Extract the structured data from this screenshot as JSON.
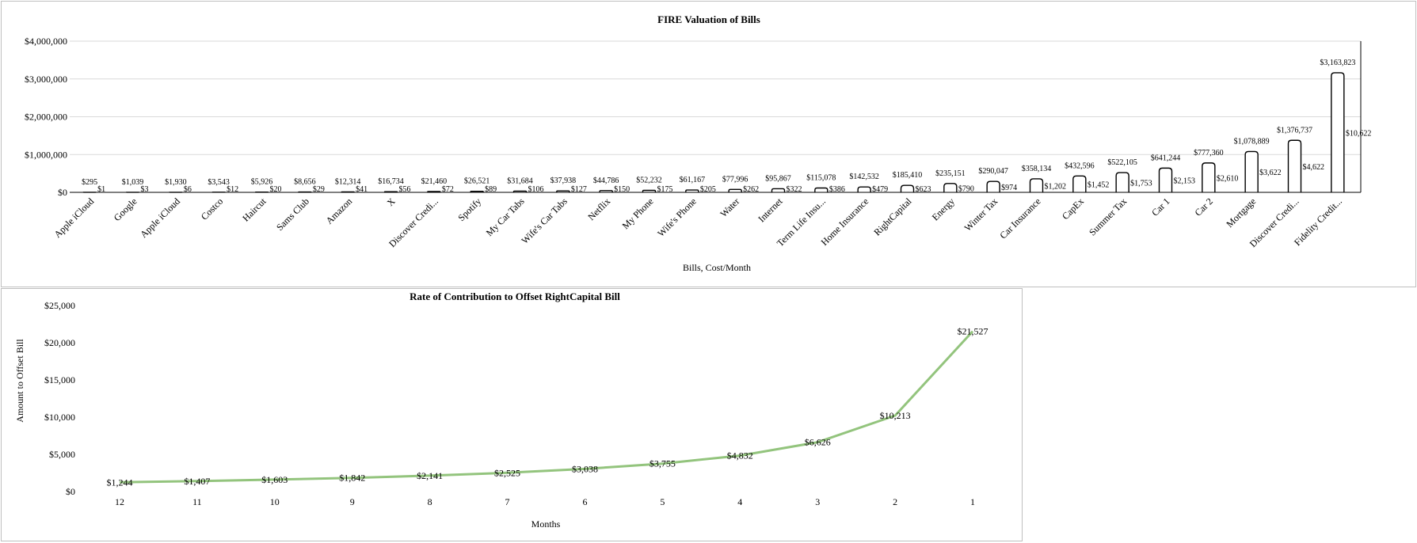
{
  "chart_data": [
    {
      "type": "bar",
      "title": "FIRE Valuation of Bills",
      "xlabel": "Bills, Cost/Month",
      "ylabel": "",
      "ylim": [
        0,
        4000000
      ],
      "yticks": [
        "$0",
        "$1,000,000",
        "$2,000,000",
        "$3,000,000",
        "$4,000,000"
      ],
      "grid": true,
      "categories": [
        "Apple iCloud",
        "Google",
        "Apple iCloud",
        "Costco",
        "Haircut",
        "Sams Club",
        "Amazon",
        "X",
        "Discover Credi...",
        "Spotify",
        "My Car Tabs",
        "Wife's Car Tabs",
        "Netflix",
        "My Phone",
        "Wife's Phone",
        "Water",
        "Internet",
        "Term Life Insu...",
        "Home Insurance",
        "RightCapital",
        "Energy",
        "Winter Tax",
        "Car Insurance",
        "CapEx",
        "Summer Tax",
        "Car 1",
        "Car 2",
        "Mortgage",
        "Discover Credi...",
        "Fidelity Credit..."
      ],
      "series": [
        {
          "values": [
            295,
            1039,
            1930,
            3543,
            5926,
            8656,
            12314,
            16734,
            21460,
            26521,
            31684,
            37938,
            44786,
            52232,
            61167,
            77996,
            95867,
            115078,
            142532,
            185410,
            235151,
            290047,
            358134,
            432596,
            522105,
            641244,
            777360,
            1078889,
            1376737,
            3163823
          ],
          "labels": [
            "$295",
            "$1,039",
            "$1,930",
            "$3,543",
            "$5,926",
            "$8,656",
            "$12,314",
            "$16,734",
            "$21,460",
            "$26,521",
            "$31,684",
            "$37,938",
            "$44,786",
            "$52,232",
            "$61,167",
            "$77,996",
            "$95,867",
            "$115,078",
            "$142,532",
            "$185,410",
            "$235,151",
            "$290,047",
            "$358,134",
            "$432,596",
            "$522,105",
            "$641,244",
            "$777,360",
            "$1,078,889",
            "$1,376,737",
            "$3,163,823"
          ]
        },
        {
          "values": [
            1,
            3,
            6,
            12,
            20,
            29,
            41,
            56,
            72,
            89,
            106,
            127,
            150,
            175,
            205,
            262,
            322,
            386,
            479,
            623,
            790,
            974,
            1202,
            1452,
            1753,
            2153,
            2610,
            3622,
            4622,
            10622
          ],
          "labels": [
            "$1",
            "$3",
            "$6",
            "$12",
            "$20",
            "$29",
            "$41",
            "$56",
            "$72",
            "$89",
            "$106",
            "$127",
            "$150",
            "$175",
            "$205",
            "$262",
            "$322",
            "$386",
            "$479",
            "$623",
            "$790",
            "$974",
            "$1,202",
            "$1,452",
            "$1,753",
            "$2,153",
            "$2,610",
            "$3,622",
            "$4,622",
            "$10,622"
          ]
        }
      ]
    },
    {
      "type": "line",
      "title": "Rate of Contribution to Offset RightCapital Bill",
      "xlabel": "Months",
      "ylabel": "Amount to Offset Bill",
      "ylim": [
        0,
        25000
      ],
      "yticks": [
        "$0",
        "$5,000",
        "$10,000",
        "$15,000",
        "$20,000",
        "$25,000"
      ],
      "grid": false,
      "line_color": "#93c47d",
      "categories": [
        "12",
        "11",
        "10",
        "9",
        "8",
        "7",
        "6",
        "5",
        "4",
        "3",
        "2",
        "1"
      ],
      "series": [
        {
          "values": [
            1244,
            1407,
            1603,
            1842,
            2141,
            2525,
            3038,
            3755,
            4832,
            6626,
            10213,
            21527
          ],
          "labels": [
            "$1,244",
            "$1,407",
            "$1,603",
            "$1,842",
            "$2,141",
            "$2,525",
            "$3,038",
            "$3,755",
            "$4,832",
            "$6,626",
            "$10,213",
            "$21,527"
          ]
        }
      ]
    }
  ]
}
